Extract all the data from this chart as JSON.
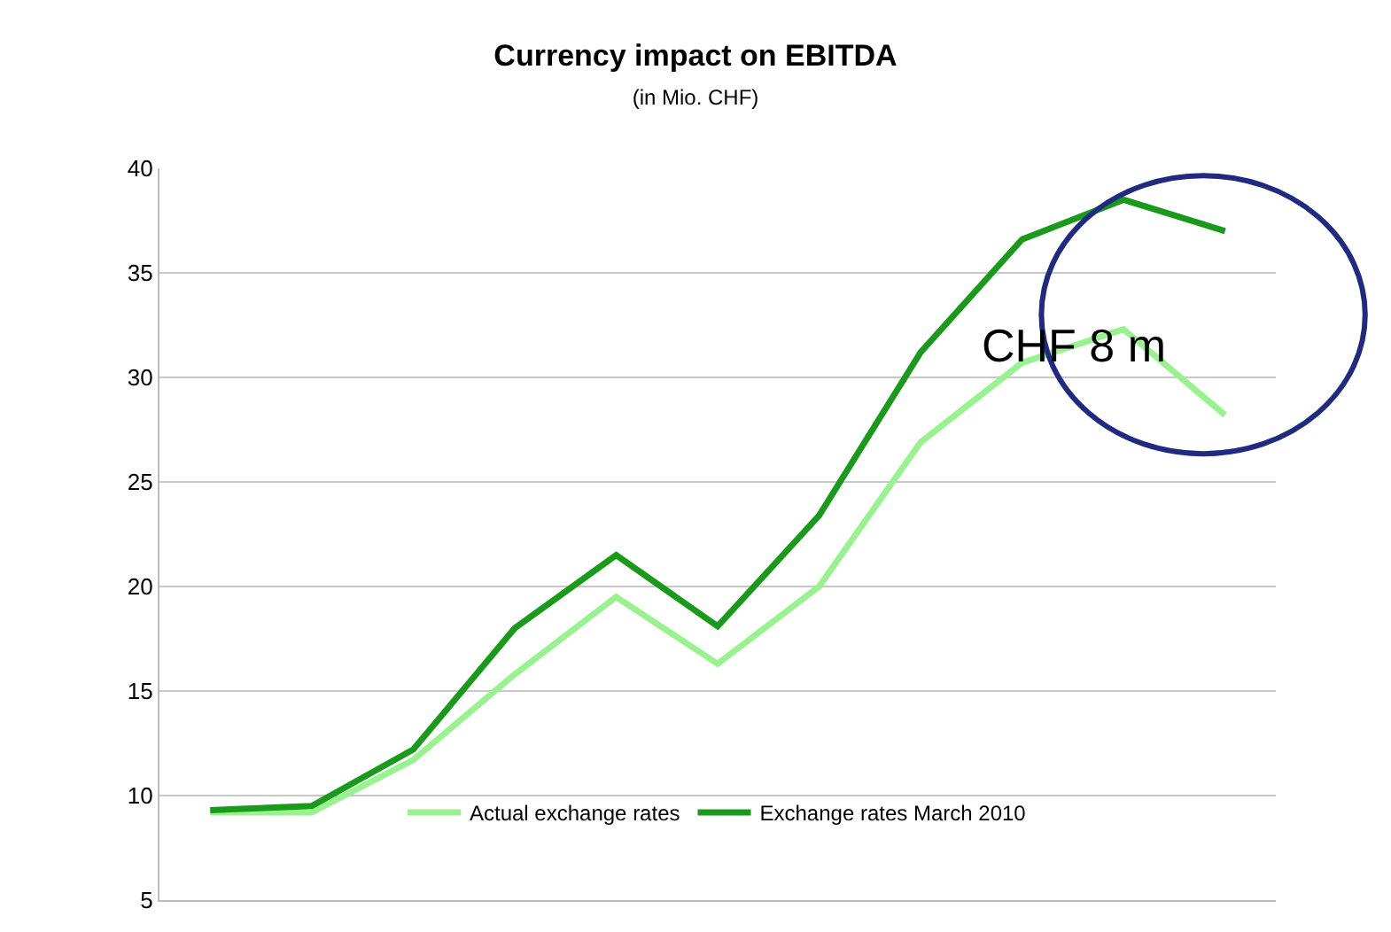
{
  "chart_data": {
    "type": "line",
    "title": "Currency impact on EBITDA",
    "subtitle": "(in Mio. CHF)",
    "categories": [
      null,
      null,
      null,
      null,
      null,
      null,
      null,
      null,
      null,
      null,
      null
    ],
    "series": [
      {
        "name": "Actual exchange rates",
        "color": "#99f28f",
        "values": [
          9.2,
          9.2,
          11.7,
          15.8,
          19.5,
          16.3,
          20.0,
          26.9,
          30.7,
          32.3,
          28.2
        ]
      },
      {
        "name": "Exchange rates March 2010",
        "color": "#1a9a1a",
        "values": [
          9.3,
          9.5,
          12.2,
          18.0,
          21.5,
          18.1,
          23.4,
          31.2,
          36.6,
          38.5,
          37.0
        ]
      }
    ],
    "ylim": [
      5,
      40
    ],
    "yticks": [
      5,
      10,
      15,
      20,
      25,
      30,
      35,
      40
    ],
    "grid": "y",
    "legend": "bottom",
    "marker": "none",
    "line_style": "solid",
    "annotations": [
      "CHF 8 m"
    ]
  }
}
